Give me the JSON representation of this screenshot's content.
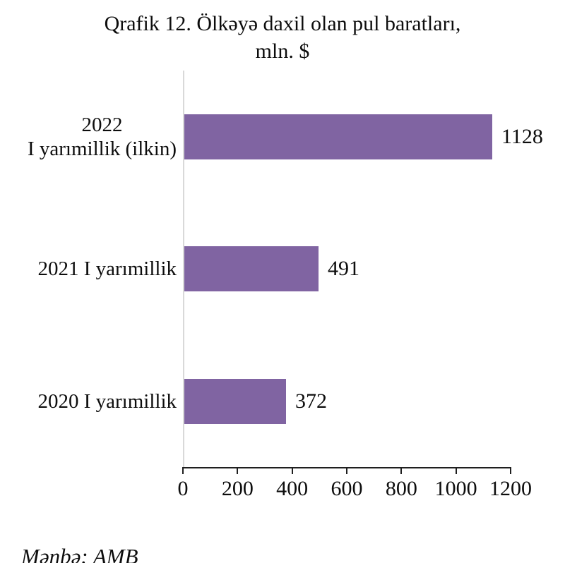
{
  "title": {
    "line1": "Qrafik 12. Ölkəyə daxil olan pul baratları,",
    "line2": "mln. $"
  },
  "source_note": "Mənbə: AMB",
  "colors": {
    "bar": "#8064A2",
    "vertical_axis": "#D9D9D9",
    "horizontal_axis": "#1F1F1F",
    "text": "#0d0d0d"
  },
  "chart_data": {
    "type": "bar",
    "orientation": "horizontal",
    "title": "Qrafik 12. Ölkəyə daxil olan pul baratları, mln. $",
    "categories": [
      "2022\nI yarımillik (ilkin)",
      "2021 I yarımillik",
      "2020 I yarımillik"
    ],
    "values": [
      1128,
      491,
      372
    ],
    "value_labels": [
      "1128",
      "491",
      "372"
    ],
    "xlabel": "",
    "ylabel": "",
    "xlim": [
      0,
      1200
    ],
    "xticks": [
      0,
      200,
      400,
      600,
      800,
      1000,
      1200
    ],
    "grid": false,
    "legend": false,
    "bar_color": "#8064A2",
    "source": "Mənbə: AMB"
  }
}
